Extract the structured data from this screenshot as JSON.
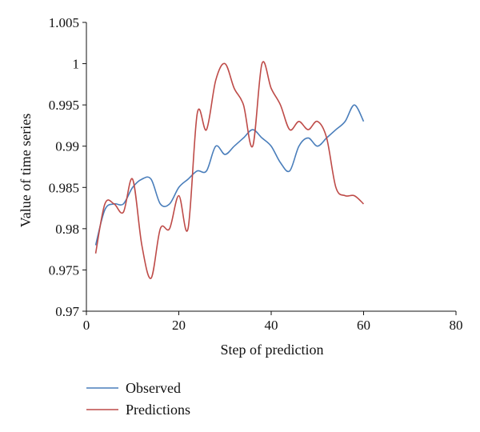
{
  "chart_data": {
    "type": "line",
    "xlabel": "Step of prediction",
    "ylabel": "Value of time series",
    "xlim": [
      0,
      80
    ],
    "ylim": [
      0.97,
      1.005
    ],
    "x_ticks": [
      0,
      20,
      40,
      60,
      80
    ],
    "x_tick_labels": [
      "0",
      "20",
      "40",
      "60",
      "80"
    ],
    "y_ticks": [
      0.97,
      0.975,
      0.98,
      0.985,
      0.99,
      0.995,
      1.0,
      1.005
    ],
    "y_tick_labels": [
      "0.97",
      "0.975",
      "0.98",
      "0.985",
      "0.99",
      "0.995",
      "1",
      "1.005"
    ],
    "grid": false,
    "legend_position": "bottom-left",
    "series": [
      {
        "name": "Observed",
        "color": "#4a7ebb",
        "x": [
          2,
          4,
          6,
          8,
          10,
          12,
          14,
          16,
          18,
          20,
          22,
          24,
          26,
          28,
          30,
          32,
          34,
          36,
          38,
          40,
          42,
          44,
          46,
          48,
          50,
          52,
          54,
          56,
          58,
          60
        ],
        "y": [
          0.978,
          0.9823,
          0.983,
          0.983,
          0.985,
          0.986,
          0.986,
          0.983,
          0.983,
          0.985,
          0.986,
          0.987,
          0.987,
          0.99,
          0.989,
          0.99,
          0.991,
          0.992,
          0.991,
          0.99,
          0.988,
          0.987,
          0.99,
          0.991,
          0.99,
          0.991,
          0.992,
          0.993,
          0.995,
          0.993
        ]
      },
      {
        "name": "Predictions",
        "color": "#be4b48",
        "x": [
          2,
          4,
          6,
          8,
          10,
          12,
          14,
          16,
          18,
          20,
          22,
          24,
          26,
          28,
          30,
          32,
          34,
          36,
          38,
          40,
          42,
          44,
          46,
          48,
          50,
          52,
          54,
          56,
          58,
          60
        ],
        "y": [
          0.977,
          0.983,
          0.983,
          0.982,
          0.986,
          0.978,
          0.974,
          0.98,
          0.98,
          0.984,
          0.98,
          0.994,
          0.992,
          0.998,
          1.0,
          0.997,
          0.995,
          0.99,
          1.0,
          0.997,
          0.995,
          0.992,
          0.993,
          0.992,
          0.993,
          0.991,
          0.985,
          0.984,
          0.984,
          0.983
        ]
      }
    ]
  }
}
